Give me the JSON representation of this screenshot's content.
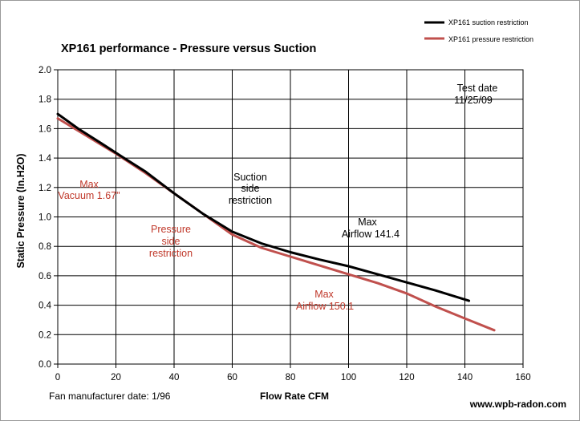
{
  "chart_data": {
    "type": "line",
    "title": "XP161 performance   - Pressure versus Suction",
    "xlabel": "Flow Rate  CFM",
    "ylabel": "Static Pressure (In.H2O)",
    "xlim": [
      0,
      160
    ],
    "ylim": [
      0,
      2.0
    ],
    "x_ticks": [
      "0",
      "20",
      "40",
      "60",
      "80",
      "100",
      "120",
      "140",
      "160"
    ],
    "y_ticks": [
      "0.0",
      "0.2",
      "0.4",
      "0.6",
      "0.8",
      "1.0",
      "1.2",
      "1.4",
      "1.6",
      "1.8",
      "2.0"
    ],
    "grid": true,
    "legend_position": "top-right",
    "series": [
      {
        "name": "XP161 suction restriction",
        "color": "#000000",
        "x": [
          0,
          7,
          15,
          22,
          30,
          40,
          50,
          60,
          70,
          80,
          90,
          100,
          110,
          120,
          130,
          141.4
        ],
        "y": [
          1.7,
          1.6,
          1.5,
          1.41,
          1.31,
          1.16,
          1.02,
          0.9,
          0.82,
          0.76,
          0.71,
          0.665,
          0.61,
          0.555,
          0.5,
          0.43
        ]
      },
      {
        "name": "XP161 pressure restriction",
        "color": "#c0504d",
        "x": [
          0,
          10,
          20,
          30,
          40,
          50,
          60,
          70,
          80,
          90,
          100,
          110,
          120,
          130,
          140,
          150.1
        ],
        "y": [
          1.67,
          1.55,
          1.43,
          1.3,
          1.16,
          1.02,
          0.88,
          0.79,
          0.73,
          0.67,
          0.61,
          0.55,
          0.48,
          0.39,
          0.31,
          0.23
        ]
      }
    ],
    "annotations": {
      "test_date_label": "Test date",
      "test_date": "11/25/09",
      "max_vacuum_1": "Max",
      "max_vacuum_2": "Vacuum  1.67\"",
      "suction_1": "Suction",
      "suction_2": "side",
      "suction_3": "restriction",
      "pressure_1": "Pressure",
      "pressure_2": "side",
      "pressure_3": "restriction",
      "max_airflow_black_1": "Max",
      "max_airflow_black_2": "Airflow  141.4",
      "max_airflow_red_1": "Max",
      "max_airflow_red_2": "Airflow  150.1"
    },
    "footer_left": "Fan manufacturer date: 1/96",
    "footer_right": "www.wpb-radon.com"
  }
}
